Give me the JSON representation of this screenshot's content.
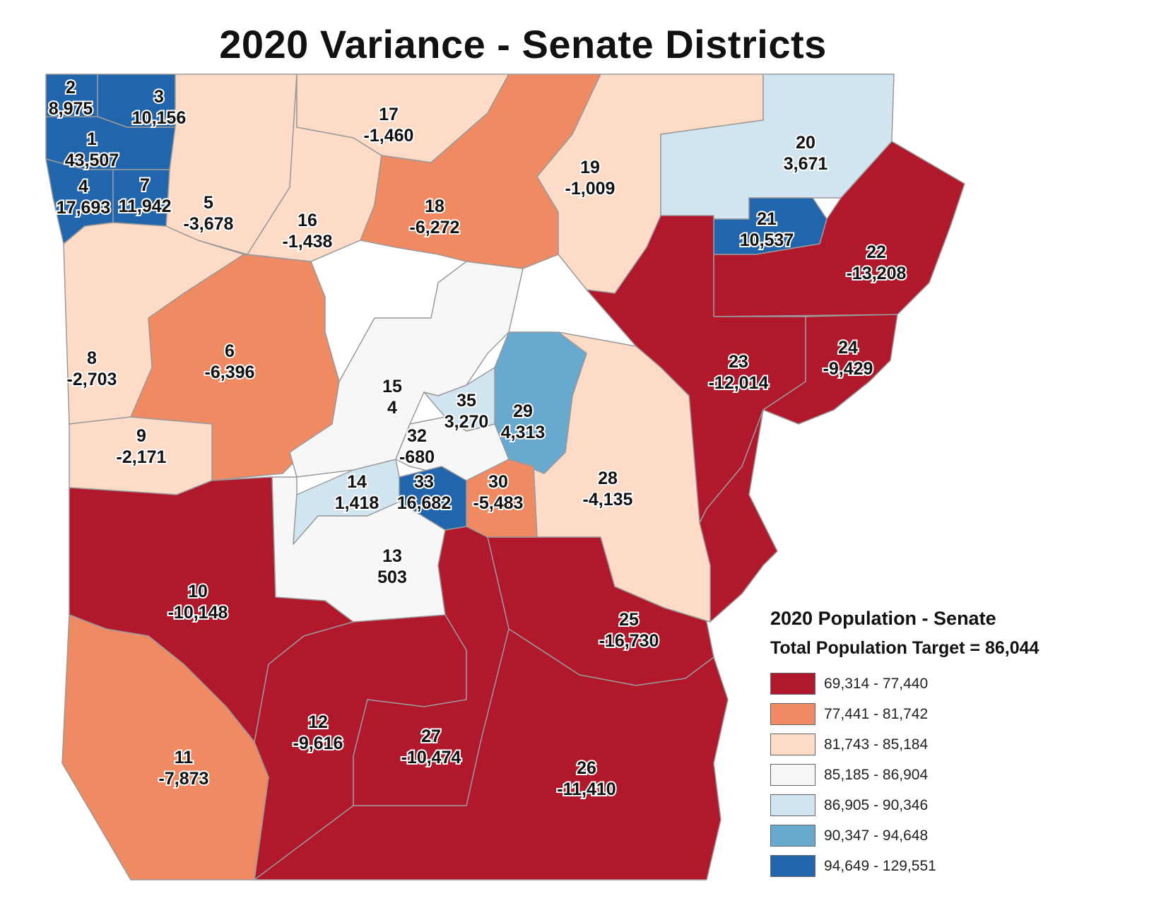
{
  "title": "2020 Variance - Senate Districts",
  "legend": {
    "title": "2020 Population - Senate",
    "target": "Total Population Target = 86,044",
    "classes": [
      {
        "range": "69,314 - 77,440",
        "color": "#b2182b"
      },
      {
        "range": "77,441 - 81,742",
        "color": "#ef8a62"
      },
      {
        "range": "81,743 - 85,184",
        "color": "#fddbc7"
      },
      {
        "range": "85,185 - 86,904",
        "color": "#f7f7f7"
      },
      {
        "range": "86,905 - 90,346",
        "color": "#d1e5f0"
      },
      {
        "range": "90,347 - 94,648",
        "color": "#67a9cf"
      },
      {
        "range": "94,649 - 129,551",
        "color": "#2166ac"
      }
    ]
  },
  "districts": [
    {
      "id": "1",
      "variance": "43,507",
      "cls": 6
    },
    {
      "id": "2",
      "variance": "8,975",
      "cls": 6
    },
    {
      "id": "3",
      "variance": "10,156",
      "cls": 6
    },
    {
      "id": "4",
      "variance": "17,693",
      "cls": 6
    },
    {
      "id": "5",
      "variance": "-3,678",
      "cls": 2
    },
    {
      "id": "6",
      "variance": "-6,396",
      "cls": 1
    },
    {
      "id": "7",
      "variance": "11,942",
      "cls": 6
    },
    {
      "id": "8",
      "variance": "-2,703",
      "cls": 2
    },
    {
      "id": "9",
      "variance": "-2,171",
      "cls": 2
    },
    {
      "id": "10",
      "variance": "-10,148",
      "cls": 0
    },
    {
      "id": "11",
      "variance": "-7,873",
      "cls": 1
    },
    {
      "id": "12",
      "variance": "-9,616",
      "cls": 0
    },
    {
      "id": "13",
      "variance": "503",
      "cls": 3
    },
    {
      "id": "14",
      "variance": "1,418",
      "cls": 4
    },
    {
      "id": "15",
      "variance": "4",
      "cls": 3
    },
    {
      "id": "16",
      "variance": "-1,438",
      "cls": 2
    },
    {
      "id": "17",
      "variance": "-1,460",
      "cls": 2
    },
    {
      "id": "18",
      "variance": "-6,272",
      "cls": 1
    },
    {
      "id": "19",
      "variance": "-1,009",
      "cls": 2
    },
    {
      "id": "20",
      "variance": "3,671",
      "cls": 4
    },
    {
      "id": "21",
      "variance": "10,537",
      "cls": 6
    },
    {
      "id": "22",
      "variance": "-13,208",
      "cls": 0
    },
    {
      "id": "23",
      "variance": "-12,014",
      "cls": 0
    },
    {
      "id": "24",
      "variance": "-9,429",
      "cls": 0
    },
    {
      "id": "25",
      "variance": "-16,730",
      "cls": 0
    },
    {
      "id": "26",
      "variance": "-11,410",
      "cls": 0
    },
    {
      "id": "27",
      "variance": "-10,474",
      "cls": 0
    },
    {
      "id": "28",
      "variance": "-4,135",
      "cls": 2
    },
    {
      "id": "29",
      "variance": "4,313",
      "cls": 5
    },
    {
      "id": "30",
      "variance": "-5,483",
      "cls": 1
    },
    {
      "id": "32",
      "variance": "-680",
      "cls": 3
    },
    {
      "id": "33",
      "variance": "16,682",
      "cls": 6
    },
    {
      "id": "35",
      "variance": "3,270",
      "cls": 4
    }
  ]
}
